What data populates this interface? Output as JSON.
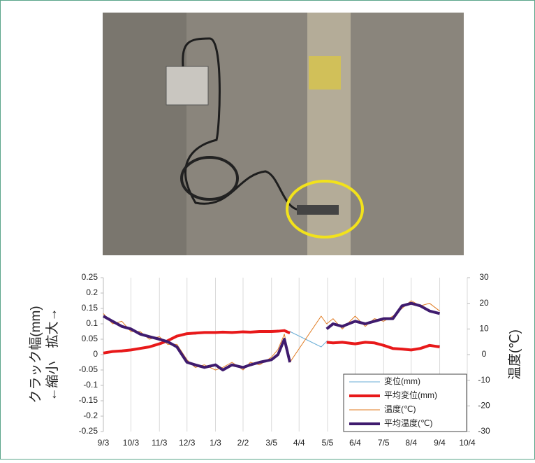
{
  "chart_data": {
    "type": "line",
    "ylabel": [
      "クラック幅(mm)",
      "←縮小　拡大→"
    ],
    "y2label": "温度(℃)",
    "x": [
      0,
      10,
      20,
      30,
      40,
      50,
      61,
      70,
      80,
      91,
      100,
      110,
      122,
      130,
      140,
      152,
      160,
      170,
      183,
      190,
      197,
      203,
      237,
      243,
      250,
      260,
      274,
      285,
      295,
      305,
      315,
      325,
      335,
      345,
      355,
      366
    ],
    "xlim": [
      0,
      396
    ],
    "xticks": [
      {
        "value": 0,
        "label": "9/3"
      },
      {
        "value": 30,
        "label": "10/3"
      },
      {
        "value": 61,
        "label": "11/3"
      },
      {
        "value": 91,
        "label": "12/3"
      },
      {
        "value": 122,
        "label": "1/3"
      },
      {
        "value": 152,
        "label": "2/2"
      },
      {
        "value": 183,
        "label": "3/5"
      },
      {
        "value": 213,
        "label": "4/4"
      },
      {
        "value": 244,
        "label": "5/5"
      },
      {
        "value": 274,
        "label": "6/4"
      },
      {
        "value": 305,
        "label": "7/5"
      },
      {
        "value": 335,
        "label": "8/4"
      },
      {
        "value": 366,
        "label": "9/4"
      },
      {
        "value": 396,
        "label": "10/4"
      }
    ],
    "ylim": [
      -0.25,
      0.25
    ],
    "yticks": [
      0.25,
      0.2,
      0.15,
      0.1,
      0.05,
      0,
      -0.05,
      -0.1,
      -0.15,
      -0.2,
      -0.25
    ],
    "y2lim": [
      -30,
      30
    ],
    "y2ticks": [
      30,
      20,
      10,
      0,
      -10,
      -20,
      -30
    ],
    "grid": "x",
    "legend": "lower right",
    "series": [
      {
        "name": "変位(mm)",
        "color": "#6aaed6",
        "width": 1,
        "values": [
          0.003,
          0.012,
          0.008,
          0.018,
          0.017,
          0.028,
          0.032,
          0.048,
          0.058,
          0.07,
          0.066,
          0.075,
          0.07,
          0.076,
          0.069,
          0.077,
          0.071,
          0.078,
          0.073,
          0.08,
          0.075,
          0.075,
          0.025,
          0.043,
          0.035,
          0.042,
          0.033,
          0.043,
          0.036,
          0.032,
          0.018,
          0.021,
          0.012,
          0.022,
          0.028,
          0.03
        ]
      },
      {
        "name": "平均変位(mm)",
        "color": "#e8191a",
        "width": 4,
        "values": [
          0.005,
          0.01,
          0.012,
          0.015,
          0.02,
          0.025,
          0.035,
          0.045,
          0.06,
          0.068,
          0.07,
          0.072,
          0.072,
          0.073,
          0.072,
          0.074,
          0.073,
          0.075,
          0.075,
          0.076,
          0.078,
          0.07,
          null,
          0.04,
          0.038,
          0.04,
          0.035,
          0.04,
          0.038,
          0.03,
          0.02,
          0.018,
          0.015,
          0.02,
          0.03,
          0.025
        ]
      },
      {
        "name": "温度(℃)",
        "color": "#e07b22",
        "width": 1,
        "axis": "y2",
        "values": [
          16,
          12,
          13,
          9,
          9,
          6,
          7,
          4,
          4,
          -2,
          -5,
          -4,
          -6,
          -5,
          -3,
          -6,
          -3,
          -4,
          -1,
          2,
          8,
          -3,
          15,
          12,
          14,
          10,
          15,
          11,
          14,
          13,
          15,
          18,
          21,
          19,
          20,
          17
        ]
      },
      {
        "name": "平均温度(℃)",
        "color": "#3f1b6e",
        "width": 4,
        "axis": "y2",
        "values": [
          15,
          13,
          11,
          10,
          8,
          7,
          6,
          5,
          3,
          -3,
          -4,
          -5,
          -4,
          -6,
          -4,
          -5,
          -4,
          -3,
          -2,
          0,
          6,
          -3,
          null,
          10,
          12,
          11,
          13,
          12,
          13,
          14,
          14,
          19,
          20,
          19,
          17,
          16
        ]
      }
    ]
  }
}
